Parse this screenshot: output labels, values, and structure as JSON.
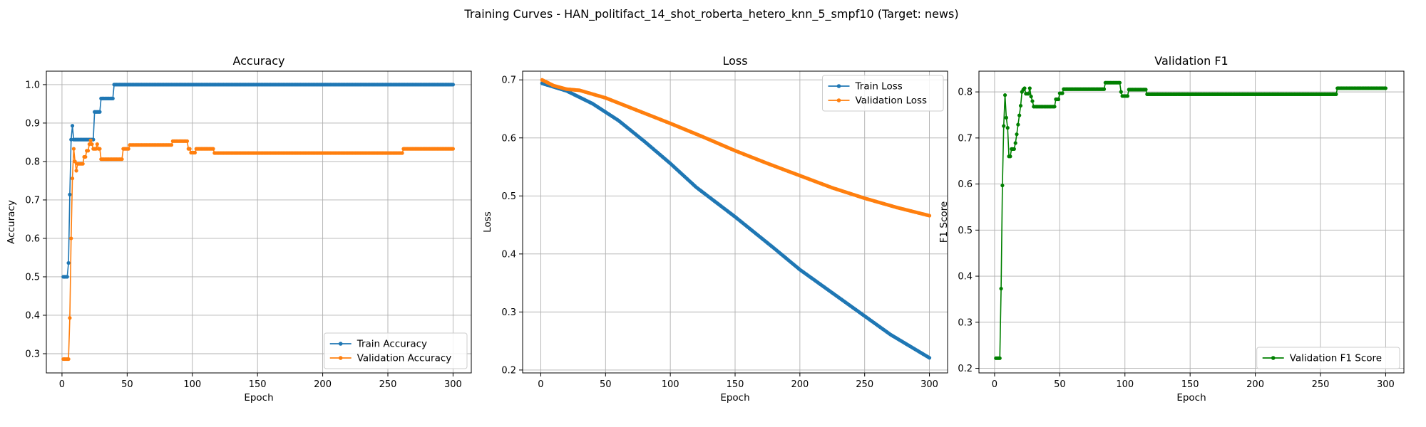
{
  "figure": {
    "suptitle": "Training Curves - HAN_politifact_14_shot_roberta_hetero_knn_5_smpf10 (Target: news)"
  },
  "chart_data": [
    {
      "type": "line",
      "title": "Accuracy",
      "xlabel": "Epoch",
      "ylabel": "Accuracy",
      "xlim": [
        -12,
        314
      ],
      "ylim": [
        0.25,
        1.035
      ],
      "xticks": [
        0,
        50,
        100,
        150,
        200,
        250,
        300
      ],
      "yticks": [
        0.3,
        0.4,
        0.5,
        0.6,
        0.7,
        0.8,
        0.9,
        1.0
      ],
      "ytick_labels": [
        "0.3",
        "0.4",
        "0.5",
        "0.6",
        "0.7",
        "0.8",
        "0.9",
        "1.0"
      ],
      "grid": true,
      "legend_position": "lower-right",
      "series": [
        {
          "name": "Train Accuracy",
          "color": "#1f77b4",
          "step_points": [
            [
              1,
              0.5
            ],
            [
              5,
              0.536
            ],
            [
              6,
              0.714
            ],
            [
              7,
              0.857
            ],
            [
              8,
              0.893
            ],
            [
              9,
              0.857
            ],
            [
              25,
              0.929
            ],
            [
              30,
              0.964
            ],
            [
              40,
              1.0
            ],
            [
              300,
              1.0
            ]
          ]
        },
        {
          "name": "Validation Accuracy",
          "color": "#ff7f0e",
          "step_points": [
            [
              1,
              0.286
            ],
            [
              6,
              0.393
            ],
            [
              7,
              0.6
            ],
            [
              8,
              0.756
            ],
            [
              9,
              0.833
            ],
            [
              10,
              0.8
            ],
            [
              11,
              0.776
            ],
            [
              12,
              0.794
            ],
            [
              17,
              0.812
            ],
            [
              19,
              0.828
            ],
            [
              21,
              0.845
            ],
            [
              22,
              0.855
            ],
            [
              23,
              0.845
            ],
            [
              24,
              0.833
            ],
            [
              27,
              0.845
            ],
            [
              28,
              0.833
            ],
            [
              30,
              0.806
            ],
            [
              47,
              0.833
            ],
            [
              52,
              0.843
            ],
            [
              85,
              0.853
            ],
            [
              97,
              0.833
            ],
            [
              99,
              0.823
            ],
            [
              103,
              0.833
            ],
            [
              117,
              0.822
            ],
            [
              262,
              0.833
            ],
            [
              300,
              0.833
            ]
          ]
        }
      ]
    },
    {
      "type": "line",
      "title": "Loss",
      "xlabel": "Epoch",
      "ylabel": "Loss",
      "xlim": [
        -14,
        314
      ],
      "ylim": [
        0.195,
        0.715
      ],
      "xticks": [
        0,
        50,
        100,
        150,
        200,
        250,
        300
      ],
      "yticks": [
        0.2,
        0.3,
        0.4,
        0.5,
        0.6,
        0.7
      ],
      "ytick_labels": [
        "0.2",
        "0.3",
        "0.4",
        "0.5",
        "0.6",
        "0.7"
      ],
      "grid": true,
      "legend_position": "upper-right",
      "series": [
        {
          "name": "Train Loss",
          "color": "#1f77b4",
          "curve_points": [
            [
              1,
              0.694
            ],
            [
              20,
              0.681
            ],
            [
              40,
              0.659
            ],
            [
              60,
              0.63
            ],
            [
              80,
              0.594
            ],
            [
              100,
              0.556
            ],
            [
              120,
              0.515
            ],
            [
              150,
              0.464
            ],
            [
              180,
              0.41
            ],
            [
              200,
              0.373
            ],
            [
              220,
              0.341
            ],
            [
              250,
              0.293
            ],
            [
              270,
              0.261
            ],
            [
              300,
              0.221
            ]
          ]
        },
        {
          "name": "Validation Loss",
          "color": "#ff7f0e",
          "curve_points": [
            [
              1,
              0.7
            ],
            [
              10,
              0.69
            ],
            [
              20,
              0.684
            ],
            [
              30,
              0.682
            ],
            [
              50,
              0.669
            ],
            [
              75,
              0.647
            ],
            [
              100,
              0.625
            ],
            [
              125,
              0.602
            ],
            [
              150,
              0.578
            ],
            [
              175,
              0.556
            ],
            [
              200,
              0.535
            ],
            [
              225,
              0.514
            ],
            [
              250,
              0.496
            ],
            [
              275,
              0.48
            ],
            [
              300,
              0.466
            ]
          ]
        }
      ]
    },
    {
      "type": "line",
      "title": "Validation F1",
      "xlabel": "Epoch",
      "ylabel": "F1 Score",
      "xlim": [
        -12,
        314
      ],
      "ylim": [
        0.19,
        0.845
      ],
      "xticks": [
        0,
        50,
        100,
        150,
        200,
        250,
        300
      ],
      "yticks": [
        0.2,
        0.3,
        0.4,
        0.5,
        0.6,
        0.7,
        0.8
      ],
      "ytick_labels": [
        "0.2",
        "0.3",
        "0.4",
        "0.5",
        "0.6",
        "0.7",
        "0.8"
      ],
      "grid": true,
      "legend_position": "lower-right",
      "series": [
        {
          "name": "Validation F1 Score",
          "color": "#008000",
          "step_points": [
            [
              1,
              0.222
            ],
            [
              5,
              0.373
            ],
            [
              6,
              0.597
            ],
            [
              7,
              0.726
            ],
            [
              8,
              0.793
            ],
            [
              9,
              0.744
            ],
            [
              10,
              0.722
            ],
            [
              11,
              0.66
            ],
            [
              13,
              0.676
            ],
            [
              16,
              0.689
            ],
            [
              17,
              0.708
            ],
            [
              18,
              0.729
            ],
            [
              19,
              0.749
            ],
            [
              20,
              0.77
            ],
            [
              21,
              0.8
            ],
            [
              22,
              0.805
            ],
            [
              23,
              0.808
            ],
            [
              24,
              0.796
            ],
            [
              27,
              0.808
            ],
            [
              28,
              0.79
            ],
            [
              29,
              0.78
            ],
            [
              30,
              0.768
            ],
            [
              47,
              0.784
            ],
            [
              50,
              0.797
            ],
            [
              53,
              0.806
            ],
            [
              85,
              0.82
            ],
            [
              97,
              0.8
            ],
            [
              98,
              0.791
            ],
            [
              103,
              0.805
            ],
            [
              117,
              0.795
            ],
            [
              263,
              0.808
            ],
            [
              300,
              0.808
            ]
          ]
        }
      ]
    }
  ]
}
